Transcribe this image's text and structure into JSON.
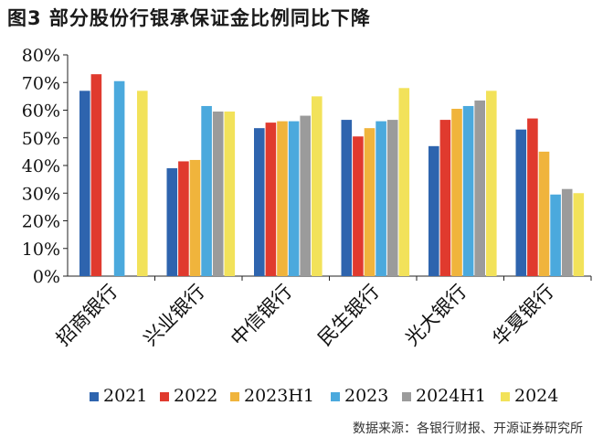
{
  "header": {
    "title": "图3  部分股份行银承保证金比例同比下降"
  },
  "footer": {
    "source": "数据来源：各银行财报、开源证券研究所"
  },
  "chart_data": {
    "type": "bar",
    "categories": [
      "招商银行",
      "兴业银行",
      "中信银行",
      "民生银行",
      "光大银行",
      "华夏银行"
    ],
    "series": [
      {
        "name": "2021",
        "color": "#2E64AE",
        "values": [
          67.0,
          39.0,
          53.5,
          56.5,
          47.0,
          53.0
        ]
      },
      {
        "name": "2022",
        "color": "#E03A2E",
        "values": [
          73.0,
          41.5,
          55.5,
          50.5,
          56.5,
          57.0
        ]
      },
      {
        "name": "2023H1",
        "color": "#F0B43C",
        "values": [
          null,
          42.0,
          56.0,
          53.5,
          60.5,
          45.0
        ]
      },
      {
        "name": "2023",
        "color": "#4BA9DD",
        "values": [
          70.5,
          61.5,
          56.0,
          56.0,
          61.5,
          29.5
        ]
      },
      {
        "name": "2024H1",
        "color": "#9B9B9B",
        "values": [
          null,
          59.5,
          58.0,
          56.5,
          63.5,
          31.5
        ]
      },
      {
        "name": "2024",
        "color": "#F2E25A",
        "values": [
          67.0,
          59.5,
          65.0,
          68.0,
          67.0,
          30.0
        ]
      }
    ],
    "yticks": [
      "0%",
      "10%",
      "20%",
      "30%",
      "40%",
      "50%",
      "60%",
      "70%",
      "80%"
    ],
    "ylim": [
      0,
      80
    ],
    "xlabel": "",
    "ylabel": "",
    "grid": false,
    "legend_position": "bottom"
  }
}
